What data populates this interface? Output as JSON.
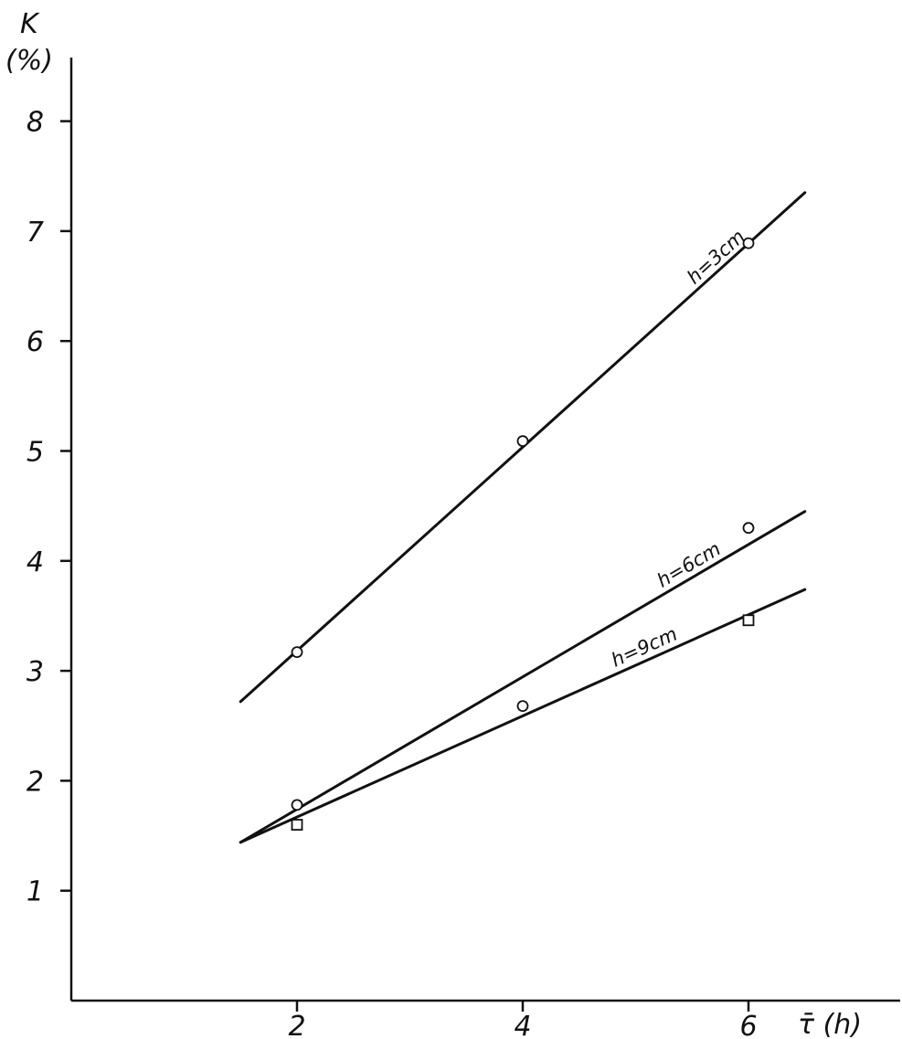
{
  "chart_data": {
    "type": "line",
    "ylabel": "K",
    "ylabel_unit": "(%)",
    "xlabel": "τ̄ (h)",
    "xlim": [
      0,
      6.7
    ],
    "ylim": [
      0,
      8.7
    ],
    "x_ticks": [
      2,
      4,
      6
    ],
    "y_ticks": [
      1,
      2,
      3,
      4,
      5,
      6,
      7,
      8
    ],
    "grid": false,
    "series": [
      {
        "name": "h=3cm",
        "marker": "circle",
        "points": [
          {
            "x": 2,
            "y": 3.17
          },
          {
            "x": 4,
            "y": 5.09
          },
          {
            "x": 6,
            "y": 6.89
          }
        ],
        "fit_line": {
          "x": [
            1.5,
            6.5
          ],
          "y": [
            2.72,
            7.35
          ]
        }
      },
      {
        "name": "h=6cm",
        "marker": "circle",
        "points": [
          {
            "x": 2,
            "y": 1.78
          },
          {
            "x": 4,
            "y": 2.68
          },
          {
            "x": 6,
            "y": 4.3
          }
        ],
        "fit_line": {
          "x": [
            1.5,
            6.5
          ],
          "y": [
            1.44,
            4.45
          ]
        }
      },
      {
        "name": "h=9cm",
        "marker": "square",
        "points": [
          {
            "x": 2,
            "y": 1.6
          },
          {
            "x": 6,
            "y": 3.46
          }
        ],
        "fit_line": {
          "x": [
            1.5,
            6.5
          ],
          "y": [
            1.44,
            3.74
          ]
        }
      }
    ]
  }
}
